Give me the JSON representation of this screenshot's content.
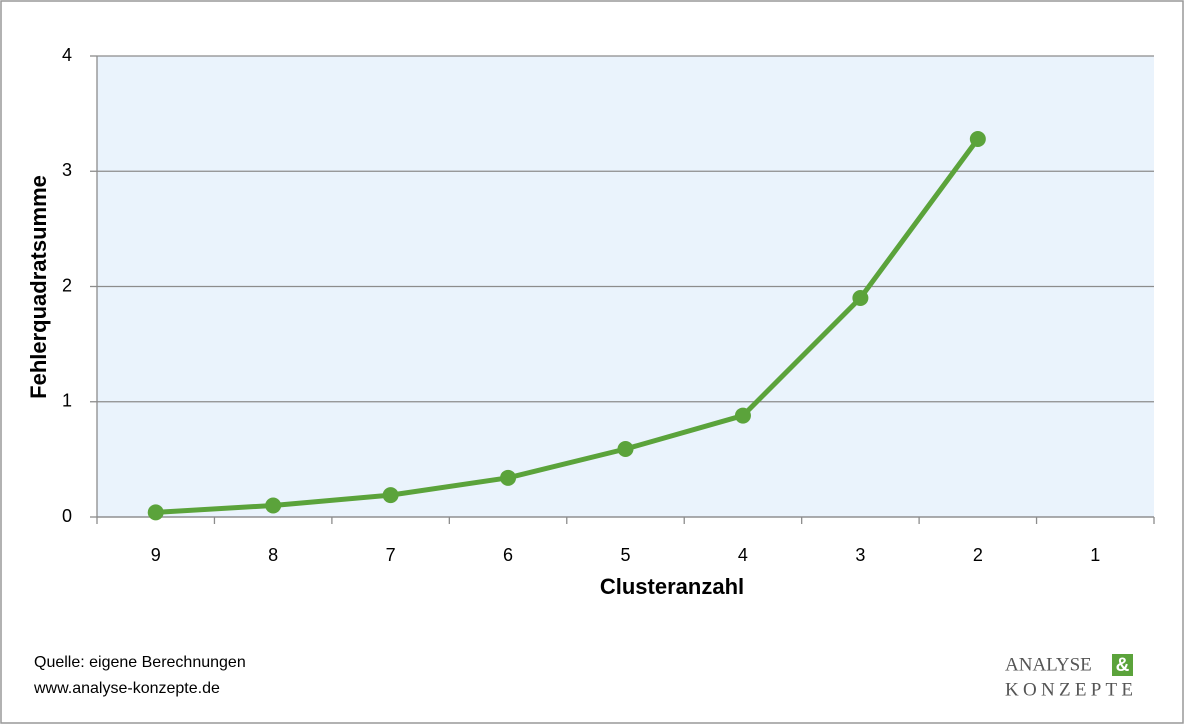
{
  "chart_data": {
    "type": "line",
    "x_label": "Clusteranzahl",
    "y_label": "Fehlerquadratsumme",
    "categories": [
      "9",
      "8",
      "7",
      "6",
      "5",
      "4",
      "3",
      "2",
      "1"
    ],
    "series": [
      {
        "color": "#5ba33b",
        "values": [
          0.04,
          0.1,
          0.19,
          0.34,
          0.59,
          0.88,
          1.9,
          3.28,
          null
        ]
      }
    ],
    "ylim": [
      0,
      4
    ],
    "yticks": [
      0,
      1,
      2,
      3,
      4
    ],
    "grid": true
  },
  "footer": {
    "source": "Quelle: eigene Berechnungen",
    "url": "www.analyse-konzepte.de",
    "logo": {
      "line1": "ANALYSE",
      "amp": "&",
      "line2": "KONZEPTE"
    }
  }
}
